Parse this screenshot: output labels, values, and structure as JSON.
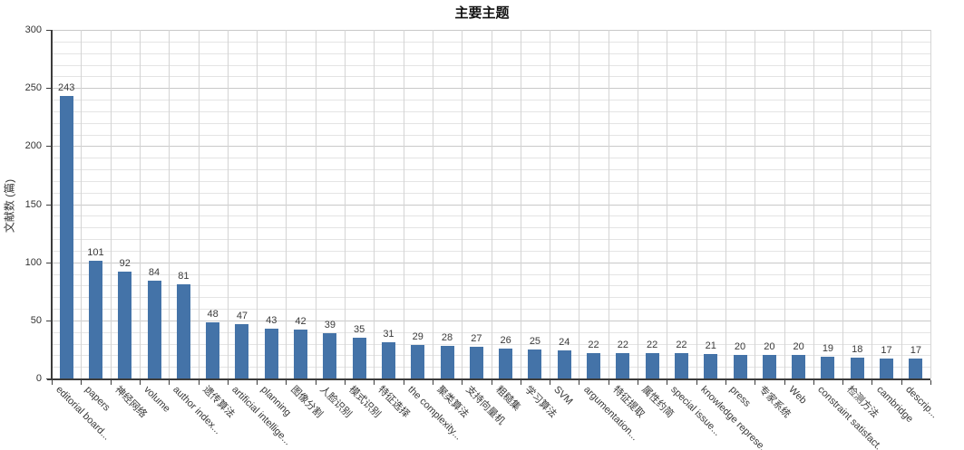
{
  "chart_data": {
    "type": "bar",
    "title": "主要主题",
    "xlabel": "",
    "ylabel": "文献数 (篇)",
    "ylim": [
      0,
      300
    ],
    "y_major_step": 50,
    "y_minor_step": 10,
    "y_tick_labels": [
      "0",
      "50",
      "100",
      "150",
      "200",
      "250",
      "300"
    ],
    "grid": true,
    "legend_position": "none",
    "bar_color": "#4473a8",
    "categories": [
      "editorial board...",
      "papers",
      "神经网络",
      "volume",
      "author index...",
      "遗传算法",
      "artificial intellige...",
      "planning",
      "图像分割",
      "人脸识别",
      "模式识别",
      "特征选择",
      "the complexity...",
      "聚类算法",
      "支持向量机",
      "粗糙集",
      "学习算法",
      "SVM",
      "argumentation...",
      "特征提取",
      "属性约简",
      "special issue...",
      "knowledge represe...",
      "press",
      "专家系统",
      "Web",
      "constraint satisfact...",
      "检测方法",
      "cambridge",
      "descrip..."
    ],
    "values": [
      243,
      101,
      92,
      84,
      81,
      48,
      47,
      43,
      42,
      39,
      35,
      31,
      29,
      28,
      27,
      26,
      25,
      24,
      22,
      22,
      22,
      22,
      21,
      20,
      20,
      20,
      19,
      18,
      17,
      17
    ]
  },
  "colors": {
    "bar": "#4473a8",
    "grid_major": "#c9c9c9",
    "grid_minor": "#e4e4e4",
    "axis": "#3c3c3c",
    "text": "#333333",
    "title": "#111111"
  }
}
